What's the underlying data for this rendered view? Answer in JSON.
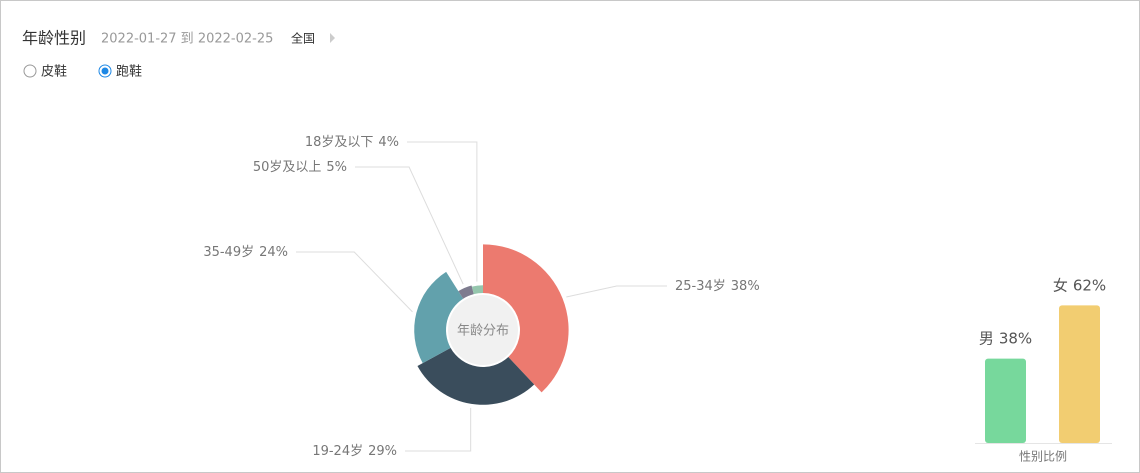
{
  "header": {
    "title": "年龄性别",
    "date_range": "2022-01-27 到 2022-02-25",
    "region": "全国"
  },
  "options": [
    "皮鞋",
    "跑鞋"
  ],
  "selected": 1,
  "chart_data": [
    {
      "type": "rose",
      "center_label": "年龄分布",
      "categories": [
        "25-34岁",
        "19-24岁",
        "35-49岁",
        "50岁及以上",
        "18岁及以下"
      ],
      "values": [
        38,
        29,
        24,
        5,
        4
      ],
      "value_labels": [
        "38%",
        "29%",
        "24%",
        "5%",
        "4%"
      ],
      "colors": [
        "#ec7a6f",
        "#3a4d5c",
        "#62a1ac",
        "#7e7c8f",
        "#95c6ad"
      ]
    },
    {
      "type": "bar",
      "xlabel": "性别比例",
      "categories": [
        "男",
        "女"
      ],
      "values": [
        38,
        62
      ],
      "value_labels": [
        "38%",
        "62%"
      ],
      "colors": [
        "#77d89c",
        "#f2cd71"
      ]
    }
  ]
}
